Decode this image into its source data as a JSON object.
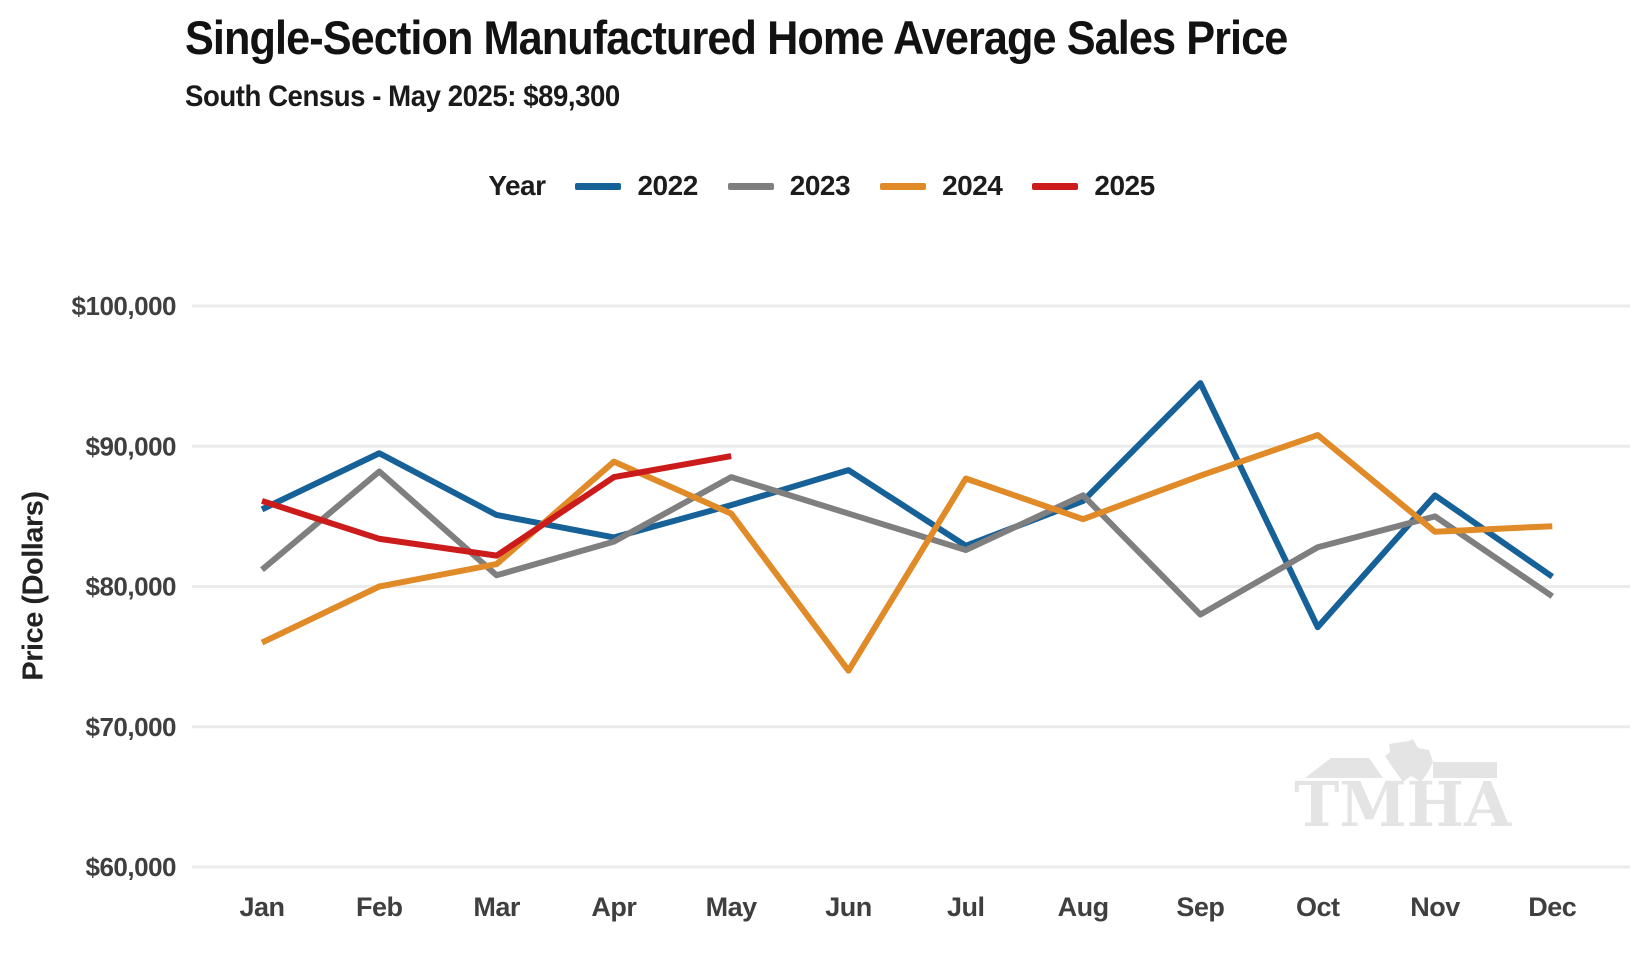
{
  "title": "Single-Section Manufactured Home Average Sales Price",
  "subtitle": "South Census - May 2025: $89,300",
  "legend": {
    "label": "Year",
    "items": [
      {
        "label": "2022",
        "color": "#176199"
      },
      {
        "label": "2023",
        "color": "#7f7f7f"
      },
      {
        "label": "2024",
        "color": "#e08a28"
      },
      {
        "label": "2025",
        "color": "#cc1b1b"
      }
    ]
  },
  "watermark": {
    "text": "TMHA"
  },
  "chart_data": {
    "type": "line",
    "title": "Single-Section Manufactured Home Average Sales Price",
    "subtitle": "South Census - May 2025: $89,300",
    "xlabel": "",
    "ylabel": "Price (Dollars)",
    "ylim": [
      60000,
      100000
    ],
    "grid": true,
    "legend_position": "top",
    "grid_color": "#ebebeb",
    "tick_color": "#3f3f3f",
    "categories": [
      "Jan",
      "Feb",
      "Mar",
      "Apr",
      "May",
      "Jun",
      "Jul",
      "Aug",
      "Sep",
      "Oct",
      "Nov",
      "Dec"
    ],
    "yticks": [
      {
        "value": 100000,
        "label": "$100,000"
      },
      {
        "value": 90000,
        "label": "$90,000"
      },
      {
        "value": 80000,
        "label": "$80,000"
      },
      {
        "value": 70000,
        "label": "$70,000"
      },
      {
        "value": 60000,
        "label": "$60,000"
      }
    ],
    "series": [
      {
        "name": "2022",
        "color": "#176199",
        "values": [
          85500,
          89500,
          85100,
          83500,
          85800,
          88300,
          82900,
          86100,
          94500,
          77100,
          86500,
          80700
        ]
      },
      {
        "name": "2023",
        "color": "#7f7f7f",
        "values": [
          81200,
          88200,
          80800,
          83200,
          87800,
          85200,
          82600,
          86500,
          78000,
          82800,
          85000,
          79300
        ]
      },
      {
        "name": "2024",
        "color": "#e08a28",
        "values": [
          76000,
          80000,
          81600,
          88900,
          85200,
          74000,
          87700,
          84800,
          87900,
          90800,
          83900,
          84300
        ]
      },
      {
        "name": "2025",
        "color": "#cc1b1b",
        "values": [
          86100,
          83400,
          82200,
          87800,
          89300,
          null,
          null,
          null,
          null,
          null,
          null,
          null
        ]
      }
    ]
  }
}
